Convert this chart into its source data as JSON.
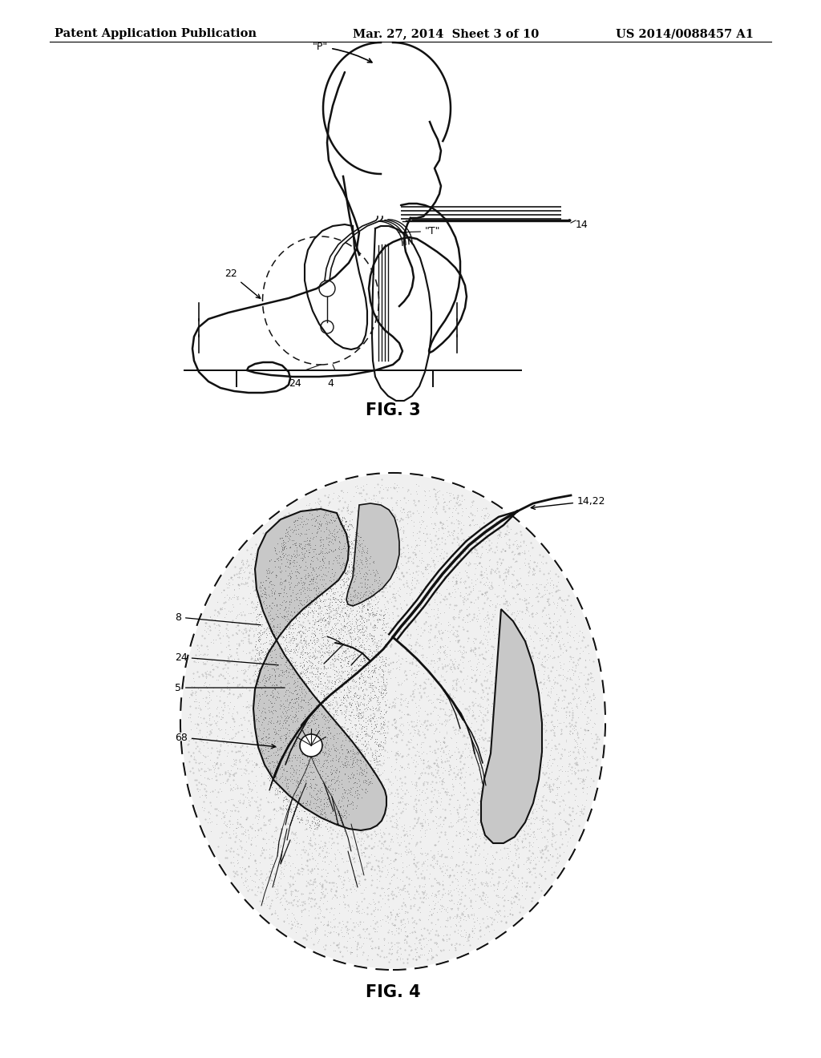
{
  "background_color": "#ffffff",
  "header_left": "Patent Application Publication",
  "header_center": "Mar. 27, 2014  Sheet 3 of 10",
  "header_right": "US 2014/0088457 A1",
  "fig3_label": "FIG. 3",
  "fig4_label": "FIG. 4",
  "line_color": "#111111"
}
